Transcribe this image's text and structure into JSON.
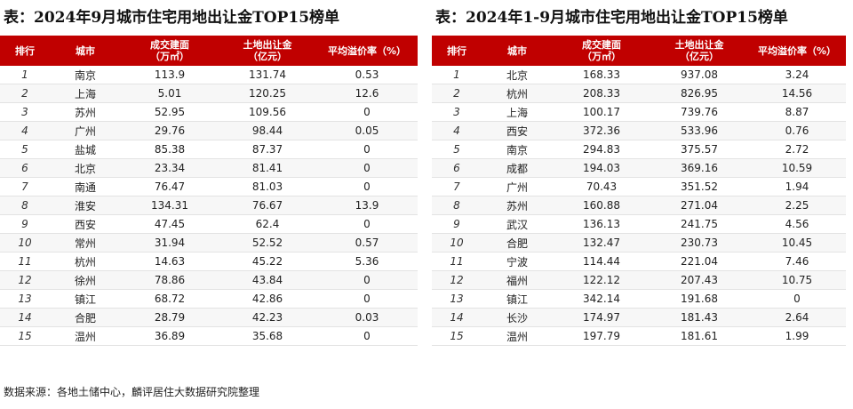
{
  "left": {
    "title": "表：2024年9月城市住宅用地出让金TOP15榜单",
    "headers": [
      "排行",
      "城市",
      "成交建面",
      "（万㎡）",
      "土地出让金",
      "（亿元）",
      "平均溢价率（%）"
    ],
    "rows": [
      [
        "1",
        "南京",
        "113.9",
        "131.74",
        "0.53"
      ],
      [
        "2",
        "上海",
        "5.01",
        "120.25",
        "12.6"
      ],
      [
        "3",
        "苏州",
        "52.95",
        "109.56",
        "0"
      ],
      [
        "4",
        "广州",
        "29.76",
        "98.44",
        "0.05"
      ],
      [
        "5",
        "盐城",
        "85.38",
        "87.37",
        "0"
      ],
      [
        "6",
        "北京",
        "23.34",
        "81.41",
        "0"
      ],
      [
        "7",
        "南通",
        "76.47",
        "81.03",
        "0"
      ],
      [
        "8",
        "淮安",
        "134.31",
        "76.67",
        "13.9"
      ],
      [
        "9",
        "西安",
        "47.45",
        "62.4",
        "0"
      ],
      [
        "10",
        "常州",
        "31.94",
        "52.52",
        "0.57"
      ],
      [
        "11",
        "杭州",
        "14.63",
        "45.22",
        "5.36"
      ],
      [
        "12",
        "徐州",
        "78.86",
        "43.84",
        "0"
      ],
      [
        "13",
        "镇江",
        "68.72",
        "42.86",
        "0"
      ],
      [
        "14",
        "合肥",
        "28.79",
        "42.23",
        "0.03"
      ],
      [
        "15",
        "温州",
        "36.89",
        "35.68",
        "0"
      ]
    ]
  },
  "right": {
    "title": "表：2024年1-9月城市住宅用地出让金TOP15榜单",
    "headers": [
      "排行",
      "城市",
      "成交建面",
      "（万㎡）",
      "土地出让金",
      "（亿元）",
      "平均溢价率（%）"
    ],
    "rows": [
      [
        "1",
        "北京",
        "168.33",
        "937.08",
        "3.24"
      ],
      [
        "2",
        "杭州",
        "208.33",
        "826.95",
        "14.56"
      ],
      [
        "3",
        "上海",
        "100.17",
        "739.76",
        "8.87"
      ],
      [
        "4",
        "西安",
        "372.36",
        "533.96",
        "0.76"
      ],
      [
        "5",
        "南京",
        "294.83",
        "375.57",
        "2.72"
      ],
      [
        "6",
        "成都",
        "194.03",
        "369.16",
        "10.59"
      ],
      [
        "7",
        "广州",
        "70.43",
        "351.52",
        "1.94"
      ],
      [
        "8",
        "苏州",
        "160.88",
        "271.04",
        "2.25"
      ],
      [
        "9",
        "武汉",
        "136.13",
        "241.75",
        "4.56"
      ],
      [
        "10",
        "合肥",
        "132.47",
        "230.73",
        "10.45"
      ],
      [
        "11",
        "宁波",
        "114.44",
        "221.04",
        "7.46"
      ],
      [
        "12",
        "福州",
        "122.12",
        "207.43",
        "10.75"
      ],
      [
        "13",
        "镇江",
        "342.14",
        "191.68",
        "0"
      ],
      [
        "14",
        "长沙",
        "174.97",
        "181.43",
        "2.64"
      ],
      [
        "15",
        "温州",
        "197.79",
        "181.61",
        "1.99"
      ]
    ]
  },
  "source": "数据来源：各地土储中心，麟评居住大数据研究院整理",
  "colors": {
    "header_bg": "#c00000",
    "header_text": "#ffffff"
  }
}
